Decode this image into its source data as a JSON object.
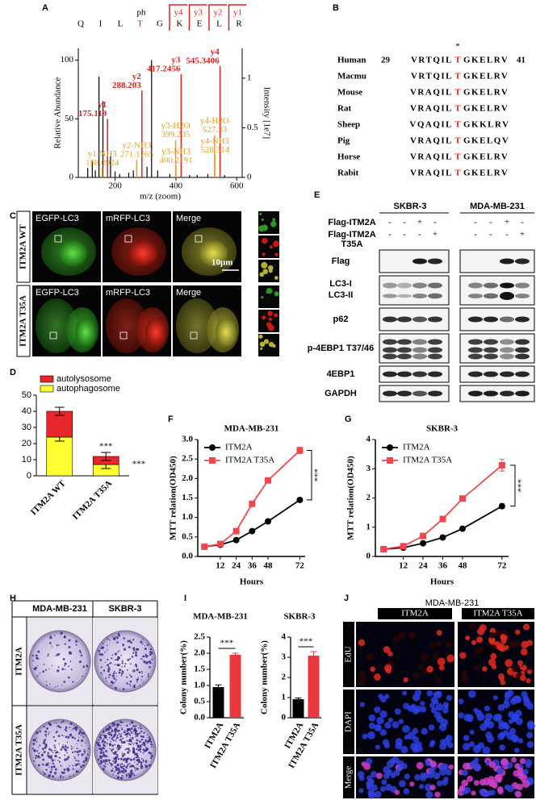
{
  "panel_a": {
    "letter": "A",
    "sequence": [
      "Q",
      "I",
      "L",
      "T",
      "G",
      "K",
      "E",
      "L",
      "R"
    ],
    "sequence_colors": [
      "#000000",
      "#000000",
      "#000000",
      "#e02020",
      "#000000",
      "#000000",
      "#000000",
      "#000000",
      "#000000"
    ],
    "modification": "ph",
    "fragment_ions": [
      "y4",
      "y3",
      "y2",
      "y1"
    ],
    "y_label": "Relative Abundance",
    "y2_label": "Intensity [1e7]",
    "x_label": "m/z (zoom)",
    "xlim": [
      79,
      618
    ],
    "xticks": [
      200,
      400,
      600
    ],
    "ylim": [
      0,
      110
    ],
    "yticks": [
      0,
      50,
      100
    ],
    "y2lim": [
      0,
      1.3
    ],
    "y2ticks": [
      0,
      0.5,
      1
    ],
    "peaks": [
      {
        "label": "y1",
        "mz": 175.119,
        "abundance": 50,
        "color": "#e02020"
      },
      {
        "label": "y2",
        "mz": 288.203,
        "abundance": 74,
        "color": "#e02020"
      },
      {
        "label": "y3",
        "mz": 417.2456,
        "abundance": 88,
        "color": "#e02020"
      },
      {
        "label": "y4",
        "mz": 545.3406,
        "abundance": 95,
        "color": "#e02020"
      },
      {
        "label": "y1-NH3",
        "mz": 158.0924,
        "abundance": 8,
        "color": "#e8a020"
      },
      {
        "label": "y2-NH3",
        "mz": 271.1765,
        "abundance": 15,
        "color": "#e8a020"
      },
      {
        "label": "y3-H2O",
        "mz": 399.235,
        "abundance": 32,
        "color": "#e8a020"
      },
      {
        "label": "y3-NH3",
        "mz": 400.2191,
        "abundance": 10,
        "color": "#e8a020"
      },
      {
        "label": "y4-H2O",
        "mz": 527.33,
        "abundance": 36,
        "color": "#e8a020"
      },
      {
        "label": "y4-NH3",
        "mz": 528.314,
        "abundance": 19,
        "color": "#e8a020"
      }
    ],
    "other_peaks": {
      "color": "#000000",
      "mz": [
        110,
        125,
        135,
        147,
        160,
        185,
        200,
        215,
        245,
        260,
        305,
        320,
        340,
        380,
        445,
        470,
        505,
        560
      ],
      "abundance": [
        8,
        14,
        6,
        86,
        65,
        18,
        5,
        3,
        4,
        6,
        9,
        100,
        6,
        3,
        2,
        2,
        3,
        2
      ]
    }
  },
  "panel_b": {
    "letter": "B",
    "marker": "*",
    "start": 29,
    "end": 41,
    "site_color": "#e02020",
    "rows": [
      {
        "species": "Human",
        "before": "VRTQIL",
        "site": "T",
        "after": "GKELRV"
      },
      {
        "species": "Macmu",
        "before": "VRTQIL",
        "site": "T",
        "after": "GKELRV"
      },
      {
        "species": "Mouse",
        "before": "VRAQIL",
        "site": "T",
        "after": "GKELRV"
      },
      {
        "species": "Rat",
        "before": "VRAQIL",
        "site": "T",
        "after": "GKELRV"
      },
      {
        "species": "Sheep",
        "before": "VQAQIL",
        "site": "T",
        "after": "GKKLRV"
      },
      {
        "species": "Pig",
        "before": "VRAQIL",
        "site": "T",
        "after": "GKELQV"
      },
      {
        "species": "Horse",
        "before": "VRAQIL",
        "site": "T",
        "after": "GKELRV"
      },
      {
        "species": "Rabit",
        "before": "VRAQIL",
        "site": "T",
        "after": "GKELRV"
      }
    ]
  },
  "panel_c": {
    "letter": "C",
    "columns": [
      "EGFP-LC3",
      "mRFP-LC3",
      "Merge"
    ],
    "rows": [
      "ITM2A WT",
      "ITM2A T35A"
    ],
    "scale_bar": "10μm"
  },
  "panel_d": {
    "letter": "D",
    "type": "stacked_bar",
    "categories": [
      "ITM2A WT",
      "ITM2A T35A"
    ],
    "series": [
      {
        "name": "autophagosome",
        "color": "#ffff33",
        "values": [
          24,
          7
        ],
        "errors": [
          2.5,
          2.5
        ]
      },
      {
        "name": "autolysosome",
        "color": "#e8272a",
        "values": [
          16,
          5
        ],
        "errors": [
          2.5,
          2.5
        ]
      }
    ],
    "ylim": [
      0,
      50
    ],
    "yticks": [
      0,
      10,
      20,
      30,
      40,
      50
    ],
    "annotations": [
      "***",
      "***"
    ]
  },
  "panel_e": {
    "letter": "E",
    "cell_lines": [
      "SKBR-3",
      "MDA-MB-231"
    ],
    "conditions": [
      {
        "label": [
          "Flag-ITM2A"
        ],
        "signs": [
          "-",
          "-",
          "+",
          "-",
          "-",
          "-",
          "+",
          "-"
        ]
      },
      {
        "label": [
          "Flag-ITM2A",
          "T35A"
        ],
        "signs": [
          "-",
          "-",
          "-",
          "+",
          "-",
          "-",
          "-",
          "+"
        ]
      }
    ],
    "blots": [
      [
        "Flag"
      ],
      [
        "LC3-I",
        "LC3-II"
      ],
      [
        "p62"
      ],
      [
        "p-4EBP1 T37/46"
      ],
      [
        "4EBP1"
      ],
      [
        "GAPDH"
      ]
    ]
  },
  "panel_f": {
    "letter": "F",
    "type": "line",
    "title": "MDA-MB-231",
    "x_label": "Hours",
    "y_label": "MTT relation(OD450)",
    "x": [
      0,
      12,
      24,
      36,
      48,
      72
    ],
    "xlim": [
      -5,
      76
    ],
    "xticks": [
      12,
      24,
      36,
      48,
      72
    ],
    "ylim": [
      0,
      3
    ],
    "yticks": [
      {
        "value": 0,
        "label": "0.0"
      },
      0.5,
      {
        "value": 1,
        "label": "1.0"
      },
      1.5,
      {
        "value": 2,
        "label": "2.0"
      },
      2.5,
      {
        "value": 3,
        "label": "3.0"
      }
    ],
    "series": [
      {
        "name": "ITM2A",
        "color": "#000000",
        "marker": "circle",
        "values": [
          0.25,
          0.3,
          0.42,
          0.65,
          0.9,
          1.45
        ],
        "errors": [
          0.02,
          0.02,
          0.03,
          0.03,
          0.04,
          0.05
        ]
      },
      {
        "name": "ITM2A T35A",
        "color": "#f0474d",
        "marker": "square",
        "values": [
          0.25,
          0.32,
          0.65,
          1.35,
          1.95,
          2.72
        ],
        "errors": [
          0.02,
          0.02,
          0.03,
          0.05,
          0.05,
          0.08
        ]
      }
    ],
    "annotation": "***"
  },
  "panel_g": {
    "letter": "G",
    "type": "line",
    "title": "SKBR-3",
    "x_label": "Hours",
    "y_label": "MTT relation(OD450)",
    "x": [
      0,
      12,
      24,
      36,
      48,
      72
    ],
    "xlim": [
      -5,
      76
    ],
    "xticks": [
      12,
      24,
      36,
      48,
      72
    ],
    "ylim": [
      0,
      4
    ],
    "yticks": [
      0,
      1,
      2,
      3,
      4
    ],
    "series": [
      {
        "name": "ITM2A",
        "color": "#000000",
        "marker": "circle",
        "values": [
          0.25,
          0.3,
          0.45,
          0.65,
          0.95,
          1.72
        ],
        "errors": [
          0.02,
          0.02,
          0.03,
          0.03,
          0.04,
          0.08
        ]
      },
      {
        "name": "ITM2A T35A",
        "color": "#f0474d",
        "marker": "square",
        "values": [
          0.25,
          0.35,
          0.7,
          1.28,
          1.98,
          3.12
        ],
        "errors": [
          0.02,
          0.03,
          0.04,
          0.05,
          0.06,
          0.2
        ]
      }
    ],
    "annotation": "***"
  },
  "panel_h": {
    "letter": "H",
    "columns": [
      "MDA-MB-231",
      "SKBR-3"
    ],
    "rows": [
      "ITM2A",
      "ITM2A T35A"
    ]
  },
  "panel_i": {
    "letter": "I",
    "charts": [
      {
        "type": "bar",
        "title": "MDA-MB-231",
        "y_label": "Colony number(%)",
        "categories": [
          "ITM2A",
          "ITM2A T35A"
        ],
        "colors": [
          "#000000",
          "#e8383d"
        ],
        "values": [
          0.95,
          1.95
        ],
        "errors": [
          0.07,
          0.05
        ],
        "ylim": [
          0,
          2.5
        ],
        "yticks": [
          {
            "value": 0,
            "label": "0.0"
          },
          0.5,
          {
            "value": 1,
            "label": "1.0"
          },
          1.5,
          {
            "value": 2,
            "label": "2.0"
          },
          2.5
        ],
        "annotation": "***"
      },
      {
        "type": "bar",
        "title": "SKBR-3",
        "y_label": "Colony number(%)",
        "categories": [
          "ITM2A",
          "ITM2A T35A"
        ],
        "colors": [
          "#000000",
          "#e8383d"
        ],
        "values": [
          0.92,
          3.08
        ],
        "errors": [
          0.06,
          0.2
        ],
        "ylim": [
          0,
          4
        ],
        "yticks": [
          0,
          1,
          2,
          3,
          4
        ],
        "annotation": "***"
      }
    ]
  },
  "panel_j": {
    "letter": "J",
    "title": "MDA-MB-231",
    "columns": [
      "ITM2A",
      "ITM2A T35A"
    ],
    "rows": [
      "EdU",
      "DAPI",
      "Merge"
    ]
  }
}
